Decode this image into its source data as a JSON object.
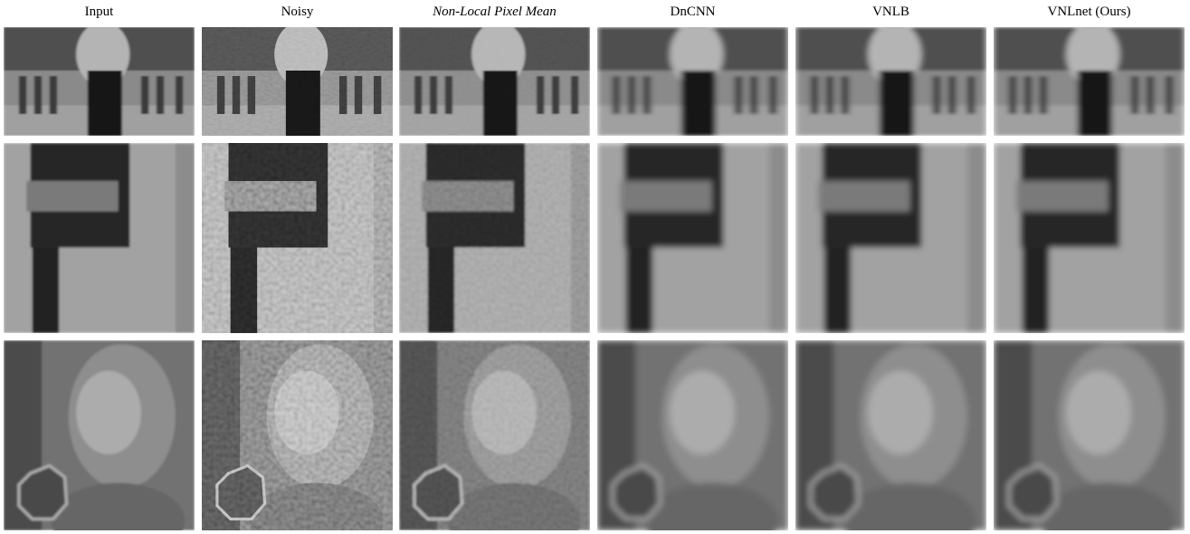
{
  "figure": {
    "columns": [
      "Input",
      "Noisy",
      "Non-Local Pixel Mean",
      "DnCNN",
      "VNLB",
      "VNLnet (Ours)"
    ]
  }
}
